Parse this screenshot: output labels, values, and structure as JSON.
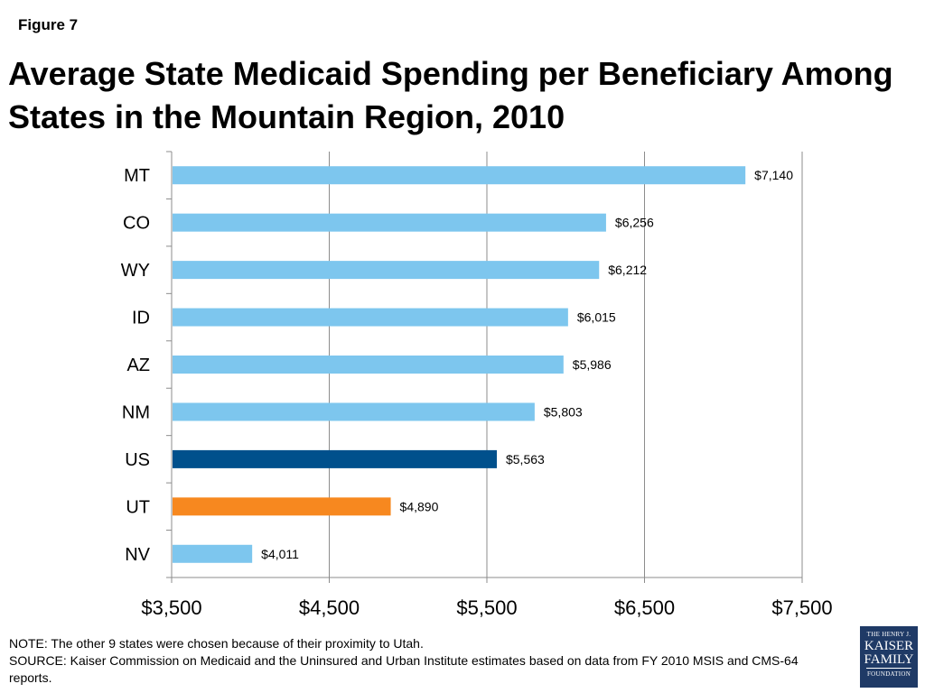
{
  "figure_label": "Figure 7",
  "title_line1": "Average State Medicaid Spending per Beneficiary Among",
  "title_line2": "States in the Mountain Region, 2010",
  "chart_data": {
    "type": "bar",
    "orientation": "horizontal",
    "categories": [
      "MT",
      "CO",
      "WY",
      "ID",
      "AZ",
      "NM",
      "US",
      "UT",
      "NV"
    ],
    "values": [
      7140,
      6256,
      6212,
      6015,
      5986,
      5803,
      5563,
      4890,
      4011
    ],
    "data_labels": [
      "$7,140",
      "$6,256",
      "$6,212",
      "$6,015",
      "$5,986",
      "$5,803",
      "$5,563",
      "$4,890",
      "$4,011"
    ],
    "bar_colors": [
      "#7dc6ee",
      "#7dc6ee",
      "#7dc6ee",
      "#7dc6ee",
      "#7dc6ee",
      "#7dc6ee",
      "#00508c",
      "#f7881f",
      "#7dc6ee"
    ],
    "xlim": [
      3500,
      7500
    ],
    "xticks": [
      3500,
      4500,
      5500,
      6500,
      7500
    ],
    "xtick_labels": [
      "$3,500",
      "$4,500",
      "$5,500",
      "$6,500",
      "$7,500"
    ],
    "grid": "vertical",
    "legend": "none",
    "title": "",
    "xlabel": "",
    "ylabel": ""
  },
  "note": "NOTE: The other 9 states were chosen because of their proximity to Utah.",
  "source": "SOURCE: Kaiser Commission on Medicaid and the Uninsured and Urban Institute estimates based on data from FY 2010 MSIS and CMS-64 reports.",
  "logo": {
    "line1": "THE HENRY J.",
    "line2": "KAISER",
    "line3": "FAMILY",
    "line4": "FOUNDATION"
  }
}
